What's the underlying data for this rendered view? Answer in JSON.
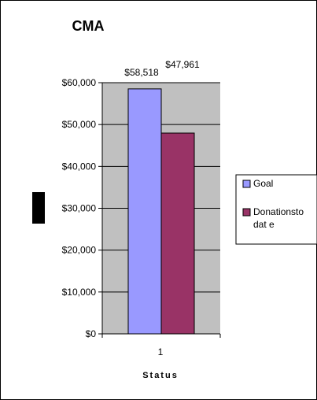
{
  "chart_data": {
    "type": "bar",
    "title": "CMA",
    "categories": [
      "1"
    ],
    "series": [
      {
        "name": "Goal",
        "values": [
          58518
        ],
        "color": "#9999ff"
      },
      {
        "name": "Donationsto date",
        "values": [
          47961
        ],
        "color": "#993366"
      }
    ],
    "data_labels": [
      "$58,518",
      "$47,961"
    ],
    "xlabel": "Status",
    "ylabel": "",
    "ylim": [
      0,
      60000
    ],
    "yticks": [
      0,
      10000,
      20000,
      30000,
      40000,
      50000,
      60000
    ],
    "ytick_labels": [
      "$0",
      "$10,000",
      "$20,000",
      "$30,000",
      "$40,000",
      "$50,000",
      "$60,000"
    ],
    "grid": true,
    "plot_background": "#c0c0c0",
    "legend_position": "right",
    "legend": {
      "entries": [
        {
          "line1": "Goal",
          "line2": ""
        },
        {
          "line1": "Donationsto",
          "line2": "dat e"
        }
      ]
    }
  }
}
